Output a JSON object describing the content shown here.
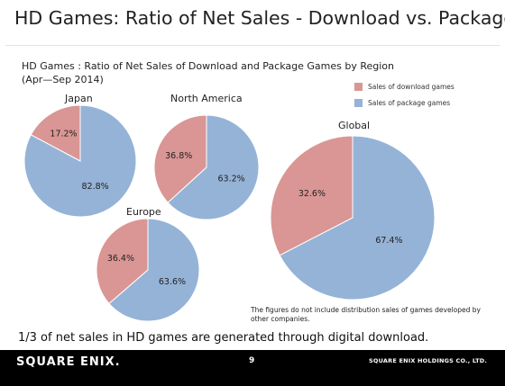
{
  "slide": {
    "title": "HD Games: Ratio of Net Sales - Download vs. Package",
    "subtitle_line1": "HD Games : Ratio of Net Sales of Download and Package Games by Region",
    "subtitle_line2": "(Apr—Sep 2014)",
    "note": "The figures do not include distribution sales of games developed by other companies.",
    "summary": "1/3 of net sales in HD games are generated through digital download."
  },
  "legend": {
    "download": "Sales of download games",
    "package": "Sales of package games"
  },
  "colors": {
    "download": "#d99694",
    "package": "#95b3d7"
  },
  "footer": {
    "brand": "SQUARE ENIX.",
    "page": "9",
    "company": "SQUARE ENIX HOLDINGS CO., LTD."
  },
  "chart_data": [
    {
      "type": "pie",
      "title": "Japan",
      "categories": [
        "Sales of download games",
        "Sales of package games"
      ],
      "values": [
        17.2,
        82.8
      ],
      "labels": [
        "17.2%",
        "82.8%"
      ]
    },
    {
      "type": "pie",
      "title": "North America",
      "categories": [
        "Sales of download games",
        "Sales of package games"
      ],
      "values": [
        36.8,
        63.2
      ],
      "labels": [
        "36.8%",
        "63.2%"
      ]
    },
    {
      "type": "pie",
      "title": "Europe",
      "categories": [
        "Sales of download games",
        "Sales of package games"
      ],
      "values": [
        36.4,
        63.6
      ],
      "labels": [
        "36.4%",
        "63.6%"
      ]
    },
    {
      "type": "pie",
      "title": "Global",
      "categories": [
        "Sales of download games",
        "Sales of package games"
      ],
      "values": [
        32.6,
        67.4
      ],
      "labels": [
        "32.6%",
        "67.4%"
      ]
    }
  ]
}
